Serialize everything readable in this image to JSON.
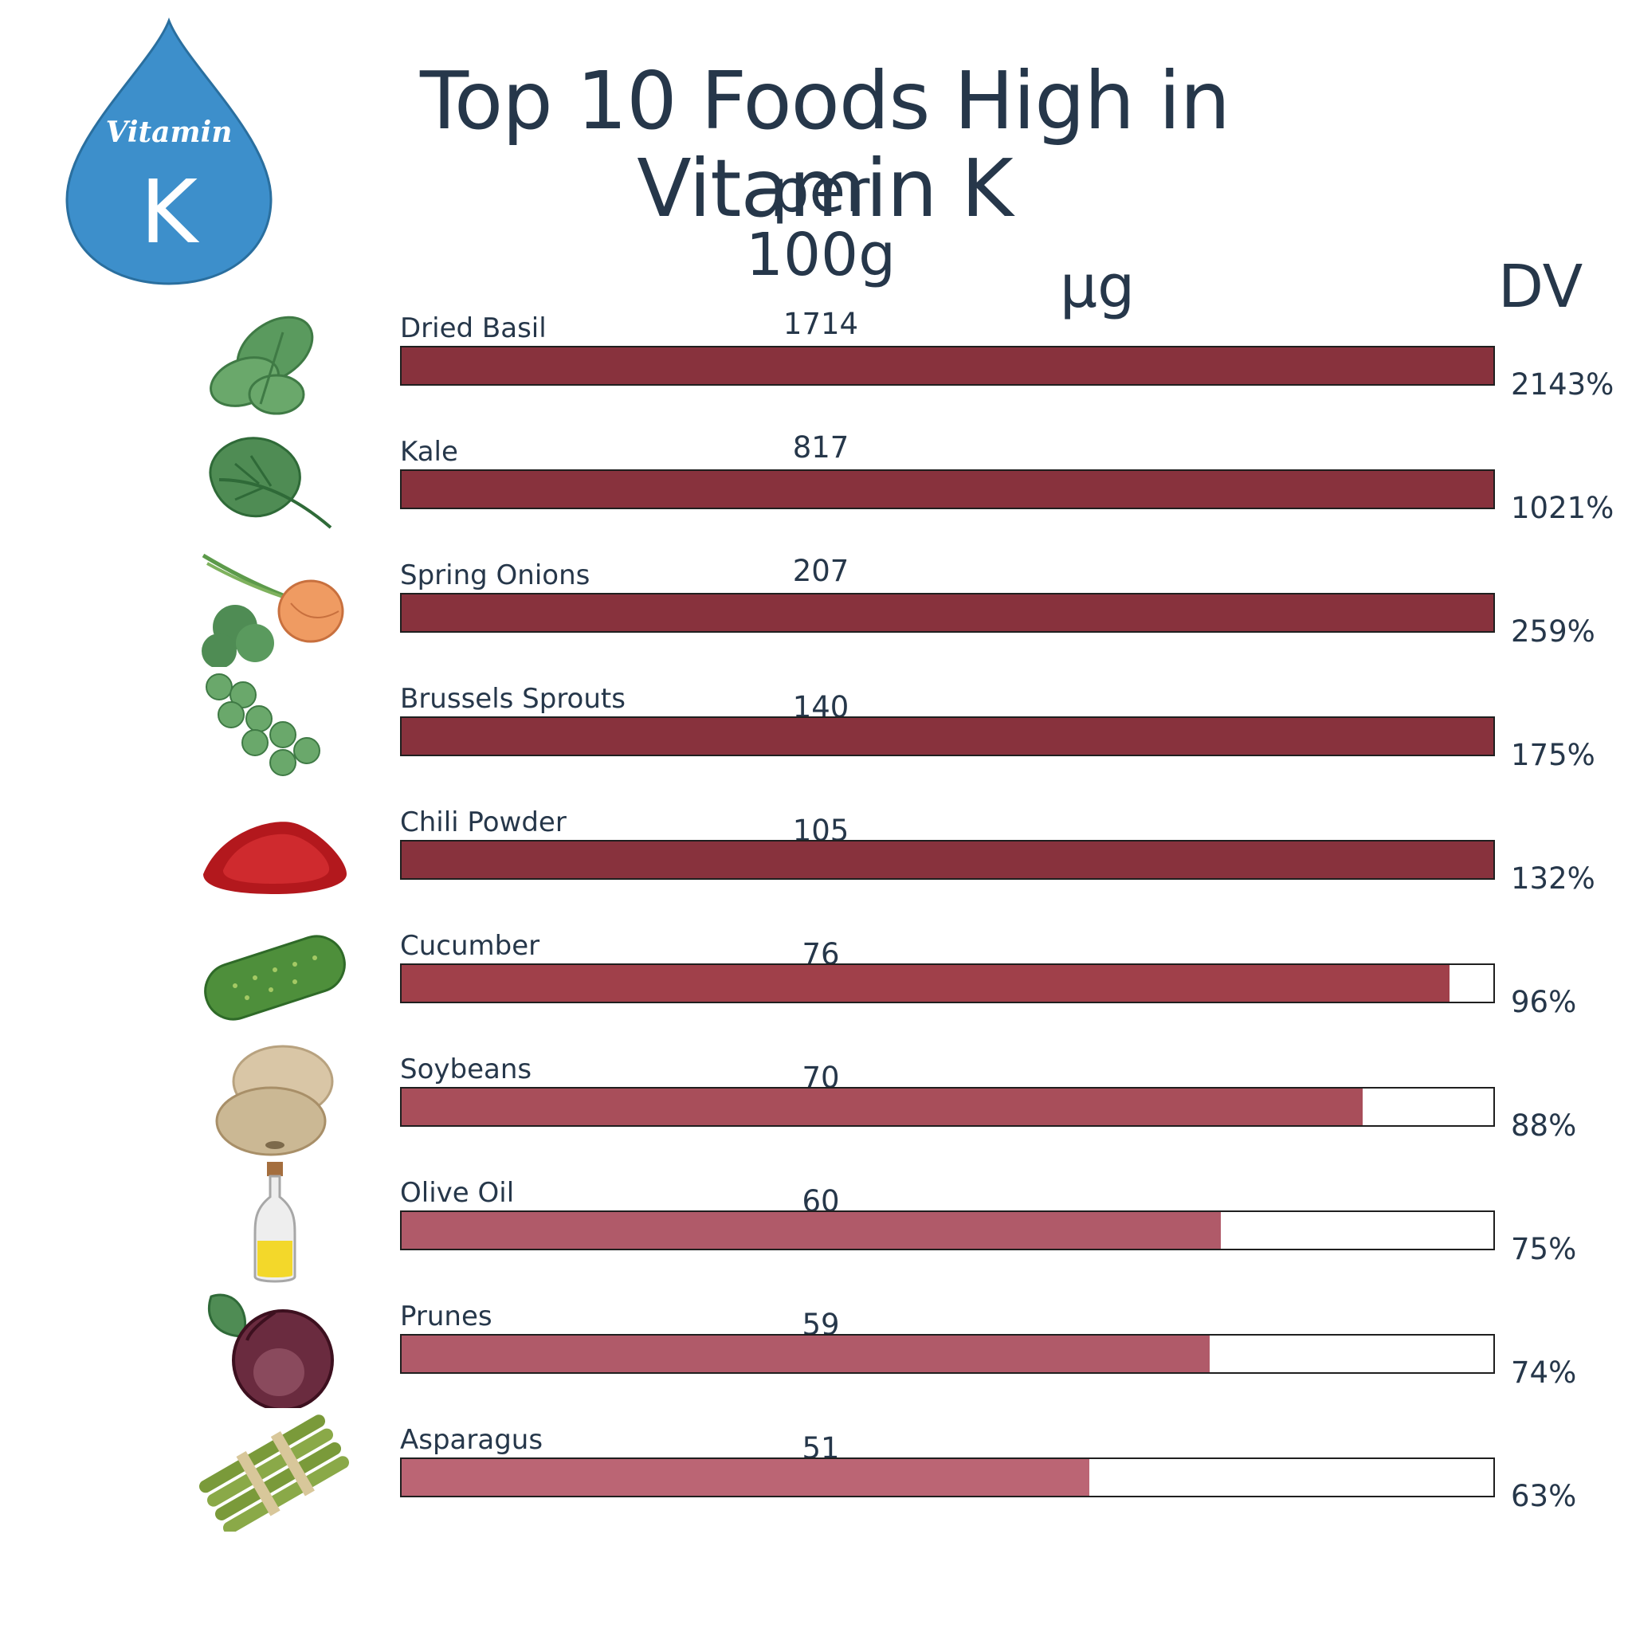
{
  "header": {
    "title": "Top 10 Foods High in Vitamin K",
    "subtitle": "per 100g",
    "unit_header": "µg",
    "dv_header": "DV"
  },
  "badge": {
    "word": "Vitamin",
    "letter": "K",
    "color": "#3d8fcb"
  },
  "chart_data": {
    "type": "bar",
    "orientation": "horizontal",
    "categories": [
      "Dried Basil",
      "Kale",
      "Spring Onions",
      "Brussels Sprouts",
      "Chili Powder",
      "Cucumber",
      "Soybeans",
      "Olive Oil",
      "Prunes",
      "Asparagus"
    ],
    "series": [
      {
        "values": [
          1714,
          817,
          207,
          140,
          105,
          76,
          70,
          60,
          59,
          51
        ]
      }
    ],
    "dv_labels": [
      "2143%",
      "1021%",
      "259%",
      "175%",
      "132%",
      "96%",
      "88%",
      "75%",
      "74%",
      "63%"
    ],
    "dv_percent": [
      2143,
      1021,
      259,
      175,
      132,
      96,
      88,
      75,
      74,
      63
    ],
    "bar_max_percent": 100,
    "bar_colors": [
      "#88323d",
      "#88323d",
      "#88323d",
      "#88323d",
      "#88323d",
      "#a0404a",
      "#a84e5a",
      "#b05a69",
      "#b05a69",
      "#bb6574"
    ],
    "icons": [
      "basil-icon",
      "kale-icon",
      "spring-onion-icon",
      "brussels-sprouts-icon",
      "chili-powder-icon",
      "cucumber-icon",
      "soybeans-icon",
      "olive-oil-icon",
      "prune-icon",
      "asparagus-icon"
    ]
  }
}
